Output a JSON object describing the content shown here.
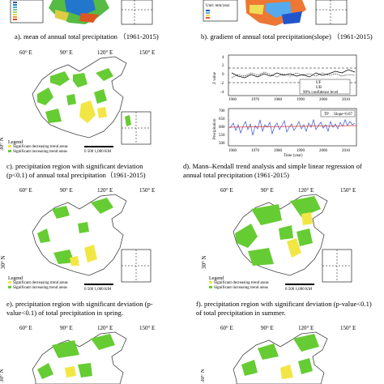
{
  "captions": {
    "a": "a). mean of annual total precipitation （1961-2015)",
    "b": "b). gradient of annual total precipitation(slope) （1961-2015)",
    "c_l1": "c). precipitation region with significant deviation",
    "c_l2": "(p<0.1) of annual total precipitation（1961-2015)",
    "d_l1": "d). Mann–Kendall trend analysis and simple linear regression of",
    "d_l2": "annual total precipitation (1961-2015)",
    "e_l1": "e). precipitation region with significant deviation (p-",
    "e_l2": "value<0.1) of total precipitation in spring.",
    "f_l1": "f). precipitation region with significant deviation (p-value<0.1)",
    "f_l2": "of total precipitation in summer."
  },
  "map_labels": {
    "lon_60": "60° E",
    "lon_90": "90° E",
    "lon_120": "120° E",
    "lon_150": "150° E",
    "lat_30": "30° N",
    "lat_0": "0°",
    "scale": "0   500  1,000 KM",
    "scale_km": "KM",
    "legend_title": "Legend",
    "legend_dec": "Significant decreasing trend areas",
    "legend_inc": "Significant increasing trend areas",
    "unit_b": "Unit: mm/year"
  },
  "mk_plot": {
    "ylabel": "Z value",
    "legend": [
      "UF",
      "UB",
      "90% confidence level"
    ],
    "xticks": [
      "1960",
      "1970",
      "1980",
      "1990",
      "2000",
      "2010"
    ],
    "yticks": [
      "4",
      "2",
      "0",
      "-2",
      "-4"
    ]
  },
  "tp_plot": {
    "ylabel": "Precipitation",
    "xlabel": "Time (year)",
    "legend": [
      "TP",
      "Slope=0.07"
    ],
    "xticks": [
      "1960",
      "1970",
      "1980",
      "1990",
      "2000",
      "2010"
    ],
    "yticks": [
      "700",
      "650",
      "600",
      "550",
      "500"
    ]
  },
  "colors": {
    "increase": "#66cc33",
    "decrease": "#f2e645",
    "line_tp": "#3355dd",
    "line_slope": "#dd3333"
  }
}
